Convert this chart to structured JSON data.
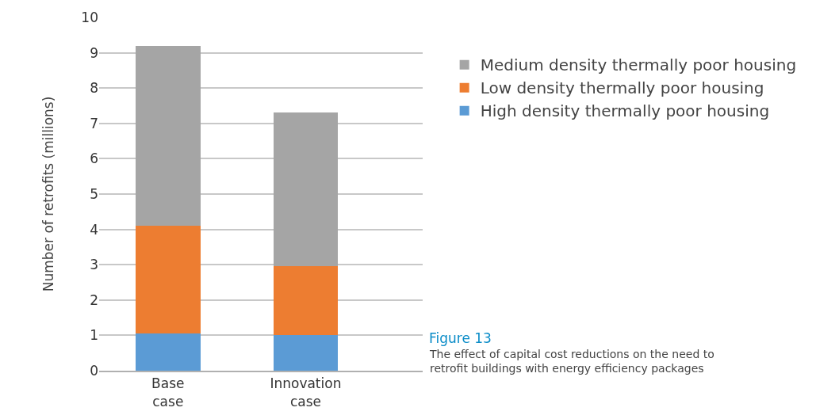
{
  "chart_data": {
    "type": "bar",
    "stacked": true,
    "ylabel": "Number of retrofits (millions)",
    "categories": [
      "Base case",
      "Innovation case"
    ],
    "series": [
      {
        "name": "High density thermally poor housing",
        "color": "#5b9bd5",
        "values": [
          1.05,
          1.0
        ]
      },
      {
        "name": "Low density thermally poor housing",
        "color": "#ed7d31",
        "values": [
          3.05,
          1.95
        ]
      },
      {
        "name": "Medium density thermally poor housing",
        "color": "#a5a5a5",
        "values": [
          5.1,
          4.35
        ]
      }
    ],
    "ylim": [
      0,
      10
    ],
    "yticks": [
      0,
      1,
      2,
      3,
      4,
      5,
      6,
      7,
      8,
      9,
      10
    ],
    "grid": "y",
    "legend": "right",
    "annotations": [
      "Figure 13",
      "The effect of capital cost reductions on the need to retrofit buildings with energy efficiency packages"
    ]
  }
}
